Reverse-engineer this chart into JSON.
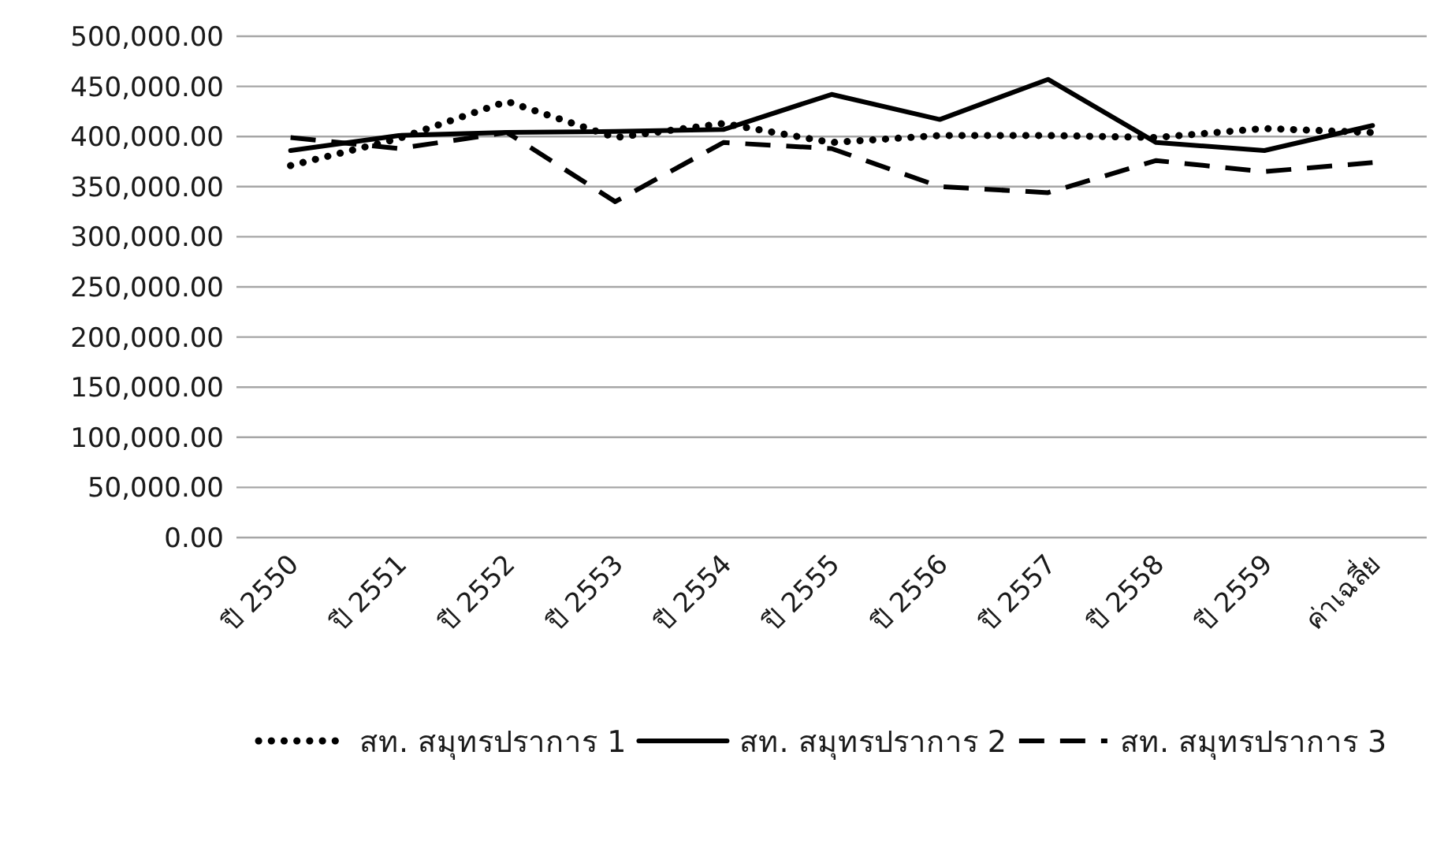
{
  "chart_data": {
    "type": "line",
    "categories": [
      "ปี 2550",
      "ปี 2551",
      "ปี 2552",
      "ปี 2553",
      "ปี 2554",
      "ปี 2555",
      "ปี 2556",
      "ปี 2557",
      "ปี 2558",
      "ปี 2559",
      "ค่าเฉลี่ย"
    ],
    "series": [
      {
        "name": "สท. สมุทรปราการ 1",
        "color": "#000000",
        "line_style": "dotted",
        "values": [
          371000,
          398000,
          435000,
          399000,
          413000,
          394000,
          401000,
          401000,
          399000,
          408000,
          404000
        ]
      },
      {
        "name": "สท. สมุทรปราการ 2",
        "color": "#000000",
        "line_style": "solid",
        "values": [
          386000,
          401000,
          404000,
          405000,
          407000,
          442000,
          417000,
          457000,
          394000,
          386000,
          411000
        ]
      },
      {
        "name": "สท. สมุทรปราการ 3",
        "color": "#000000",
        "line_style": "dashed",
        "values": [
          399000,
          388000,
          404000,
          335000,
          394000,
          388000,
          350000,
          344000,
          376000,
          365000,
          374000
        ]
      }
    ],
    "ylim": [
      0,
      500000
    ],
    "yticks": [
      {
        "value": 0,
        "label": "0.00"
      },
      {
        "value": 50000,
        "label": "50,000.00"
      },
      {
        "value": 100000,
        "label": "100,000.00"
      },
      {
        "value": 150000,
        "label": "150,000.00"
      },
      {
        "value": 200000,
        "label": "200,000.00"
      },
      {
        "value": 250000,
        "label": "250,000.00"
      },
      {
        "value": 300000,
        "label": "300,000.00"
      },
      {
        "value": 350000,
        "label": "350,000.00"
      },
      {
        "value": 400000,
        "label": "400,000.00"
      },
      {
        "value": 450000,
        "label": "450,000.00"
      },
      {
        "value": 500000,
        "label": "500,000.00"
      }
    ],
    "grid": "y",
    "legend": "bottom",
    "marker": "none"
  }
}
